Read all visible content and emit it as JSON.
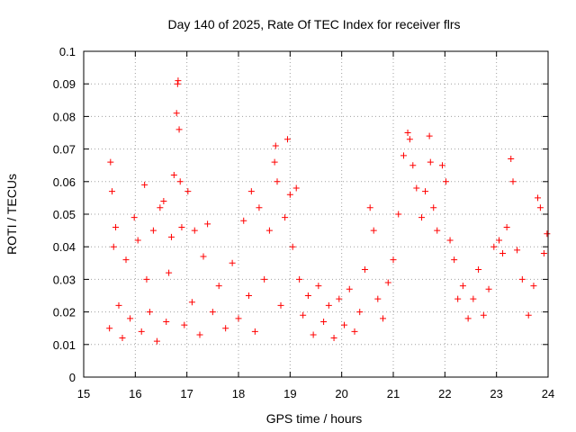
{
  "chart_data": {
    "type": "scatter",
    "title": "Day 140 of 2025, Rate Of TEC Index for receiver flrs",
    "xlabel": "GPS time / hours",
    "ylabel": "ROTI / TECUs",
    "xlim": [
      15,
      24
    ],
    "ylim": [
      0,
      0.1
    ],
    "xticks": [
      "15",
      "16",
      "17",
      "18",
      "19",
      "20",
      "21",
      "22",
      "23",
      "24"
    ],
    "yticks": [
      "0",
      "0.01",
      "0.02",
      "0.03",
      "0.04",
      "0.05",
      "0.06",
      "0.07",
      "0.08",
      "0.09",
      "0.1"
    ],
    "grid": true,
    "marker": "plus",
    "marker_color": "#ff0000",
    "series": [
      {
        "x": [
          15.5,
          15.52,
          15.55,
          15.58,
          15.62,
          15.68,
          15.75,
          15.82,
          15.9,
          15.98,
          16.05,
          16.12,
          16.18,
          16.22,
          16.28,
          16.35,
          16.42,
          16.48,
          16.55,
          16.6,
          16.65,
          16.7,
          16.75,
          16.8,
          16.82,
          16.83,
          16.85,
          16.87,
          16.9,
          16.95,
          17.02,
          17.1,
          17.15,
          17.25,
          17.32,
          17.4,
          17.5,
          17.62,
          17.75,
          17.88,
          18.0,
          18.1,
          18.2,
          18.25,
          18.32,
          18.4,
          18.5,
          18.6,
          18.7,
          18.72,
          18.75,
          18.82,
          18.9,
          18.95,
          19.0,
          19.05,
          19.12,
          19.18,
          19.25,
          19.35,
          19.45,
          19.55,
          19.65,
          19.75,
          19.85,
          19.95,
          20.05,
          20.15,
          20.25,
          20.35,
          20.45,
          20.55,
          20.62,
          20.7,
          20.8,
          20.9,
          21.0,
          21.1,
          21.2,
          21.28,
          21.32,
          21.38,
          21.45,
          21.55,
          21.62,
          21.7,
          21.72,
          21.78,
          21.85,
          21.95,
          22.02,
          22.1,
          22.18,
          22.25,
          22.35,
          22.45,
          22.55,
          22.65,
          22.75,
          22.85,
          22.95,
          23.05,
          23.12,
          23.2,
          23.28,
          23.32,
          23.4,
          23.5,
          23.62,
          23.72,
          23.8,
          23.85,
          23.92,
          23.98
        ],
        "y": [
          0.015,
          0.066,
          0.057,
          0.04,
          0.046,
          0.022,
          0.012,
          0.036,
          0.018,
          0.049,
          0.042,
          0.014,
          0.059,
          0.03,
          0.02,
          0.045,
          0.011,
          0.052,
          0.054,
          0.017,
          0.032,
          0.043,
          0.062,
          0.081,
          0.09,
          0.091,
          0.076,
          0.06,
          0.046,
          0.016,
          0.057,
          0.023,
          0.045,
          0.013,
          0.037,
          0.047,
          0.02,
          0.028,
          0.015,
          0.035,
          0.018,
          0.048,
          0.025,
          0.057,
          0.014,
          0.052,
          0.03,
          0.045,
          0.066,
          0.071,
          0.06,
          0.022,
          0.049,
          0.073,
          0.056,
          0.04,
          0.058,
          0.03,
          0.019,
          0.025,
          0.013,
          0.028,
          0.017,
          0.022,
          0.012,
          0.024,
          0.016,
          0.027,
          0.014,
          0.02,
          0.033,
          0.052,
          0.045,
          0.024,
          0.018,
          0.029,
          0.036,
          0.05,
          0.068,
          0.075,
          0.073,
          0.065,
          0.058,
          0.049,
          0.057,
          0.074,
          0.066,
          0.052,
          0.045,
          0.065,
          0.06,
          0.042,
          0.036,
          0.024,
          0.028,
          0.018,
          0.024,
          0.033,
          0.019,
          0.027,
          0.04,
          0.042,
          0.038,
          0.046,
          0.067,
          0.06,
          0.039,
          0.03,
          0.019,
          0.028,
          0.055,
          0.052,
          0.038,
          0.044
        ]
      }
    ]
  }
}
